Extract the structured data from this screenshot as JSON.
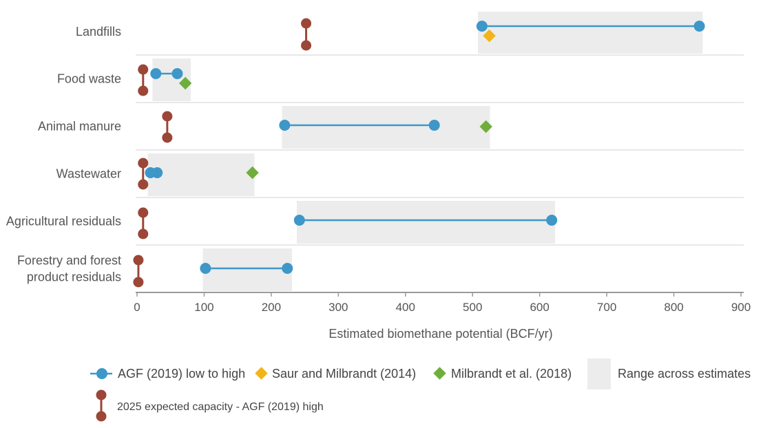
{
  "chart_data": {
    "type": "dumbbell",
    "xlabel": "Estimated biomethane potential (BCF/yr)",
    "xlim": [
      0,
      900
    ],
    "xticks": [
      "0",
      "100",
      "200",
      "300",
      "400",
      "500",
      "600",
      "700",
      "800",
      "900"
    ],
    "categories": [
      "Landfills",
      "Food waste",
      "Animal manure",
      "Wastewater",
      "Agricultural residuals",
      "Forestry and forest product residuals"
    ],
    "category_label_lines": [
      [
        "Landfills"
      ],
      [
        "Food waste"
      ],
      [
        "Animal manure"
      ],
      [
        "Wastewater"
      ],
      [
        "Agricultural residuals"
      ],
      [
        "Forestry and forest",
        "product residuals"
      ]
    ],
    "series": [
      {
        "name": "AGF (2019) low to high",
        "kind": "range",
        "color": "#3d97c9",
        "low": [
          514,
          28,
          220,
          20,
          242,
          102
        ],
        "high": [
          838,
          60,
          443,
          30,
          618,
          224
        ]
      },
      {
        "name": "Saur and Milbrandt (2014)",
        "kind": "point",
        "color": "#f2b418",
        "values": [
          525,
          null,
          null,
          null,
          null,
          null
        ]
      },
      {
        "name": "Milbrandt et al. (2018)",
        "kind": "point",
        "color": "#6fae3a",
        "values": [
          null,
          72,
          520,
          172,
          null,
          null
        ]
      },
      {
        "name": "Range across estimates",
        "kind": "band",
        "color": "#ececec",
        "low": [
          508,
          23,
          216,
          16,
          238,
          98
        ],
        "high": [
          843,
          80,
          526,
          175,
          623,
          231
        ]
      },
      {
        "name": "2025 expected capacity - AGF (2019) high",
        "kind": "capacity",
        "color": "#9b4637",
        "values": [
          252,
          9,
          45,
          9,
          9,
          2
        ]
      }
    ],
    "legend": [
      "AGF (2019) low to high",
      "Saur and Milbrandt (2014)",
      "Milbrandt et al. (2018)",
      "Range across estimates",
      "2025 expected capacity - AGF (2019) high"
    ],
    "grid": "horizontal separators",
    "legend_position": "bottom"
  }
}
